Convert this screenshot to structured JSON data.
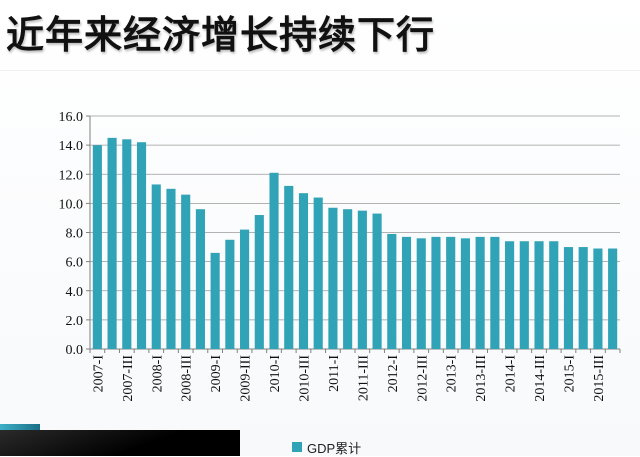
{
  "page": {
    "title": "近年来经济增长持续下行"
  },
  "colors": {
    "bar": "#31a3b6",
    "axis": "#808080",
    "grid": "#9a9a9a",
    "text": "#111111"
  },
  "chart_data": {
    "type": "bar",
    "title": "",
    "xlabel": "",
    "ylabel": "",
    "ylim": [
      0,
      16
    ],
    "yticks": [
      "0.0",
      "2.0",
      "4.0",
      "6.0",
      "8.0",
      "10.0",
      "12.0",
      "14.0",
      "16.0"
    ],
    "grid": true,
    "legend_position": "bottom",
    "categories": [
      "2007-I",
      "2007-II",
      "2007-III",
      "2007-IV",
      "2008-I",
      "2008-II",
      "2008-III",
      "2008-IV",
      "2009-I",
      "2009-II",
      "2009-III",
      "2009-IV",
      "2010-I",
      "2010-II",
      "2010-III",
      "2010-IV",
      "2011-I",
      "2011-II",
      "2011-III",
      "2011-IV",
      "2012-I",
      "2012-II",
      "2012-III",
      "2012-IV",
      "2013-I",
      "2013-II",
      "2013-III",
      "2013-IV",
      "2014-I",
      "2014-II",
      "2014-III",
      "2014-IV",
      "2015-I",
      "2015-II",
      "2015-III",
      "2015-IV"
    ],
    "x_tick_labels": [
      "2007-I",
      "",
      "2007-III",
      "",
      "2008-I",
      "",
      "2008-III",
      "",
      "2009-I",
      "",
      "2009-III",
      "",
      "2010-I",
      "",
      "2010-III",
      "",
      "2011-I",
      "",
      "2011-III",
      "",
      "2012-I",
      "",
      "2012-III",
      "",
      "2013-I",
      "",
      "2013-III",
      "",
      "2014-I",
      "",
      "2014-III",
      "",
      "2015-I",
      "",
      "2015-III",
      ""
    ],
    "series": [
      {
        "name": "GDP累计",
        "values": [
          14.0,
          14.5,
          14.4,
          14.2,
          11.3,
          11.0,
          10.6,
          9.6,
          6.6,
          7.5,
          8.2,
          9.2,
          12.1,
          11.2,
          10.7,
          10.4,
          9.7,
          9.6,
          9.5,
          9.3,
          7.9,
          7.7,
          7.6,
          7.7,
          7.7,
          7.6,
          7.7,
          7.7,
          7.4,
          7.4,
          7.4,
          7.4,
          7.0,
          7.0,
          6.9,
          6.9
        ]
      }
    ]
  }
}
